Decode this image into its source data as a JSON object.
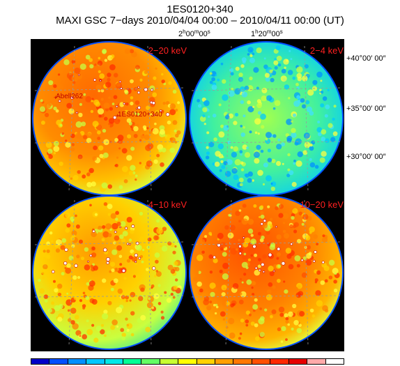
{
  "title": {
    "source": "1ES0120+340",
    "subtitle": "MAXI GSC 7−days 2010/04/04 00:00 – 2010/04/11 00:00 (UT)"
  },
  "ra_labels": [
    {
      "h": "2",
      "m": "00",
      "s": "00"
    },
    {
      "h": "1",
      "m": "20",
      "s": "00"
    }
  ],
  "dec_labels": [
    "+40°00′ 00″",
    "+35°00′ 00″",
    "+30°00′ 00″"
  ],
  "panels": [
    {
      "label": "2−20 keV",
      "tone": "warm",
      "sources": [
        "Abell262",
        "1ES0120+340"
      ]
    },
    {
      "label": "2−4 keV",
      "tone": "cool",
      "sources": []
    },
    {
      "label": "4−10 keV",
      "tone": "mid",
      "sources": []
    },
    {
      "label": "10−20 keV",
      "tone": "warm2",
      "sources": []
    }
  ],
  "colorbar": [
    "#0000c8",
    "#0050ff",
    "#0090ff",
    "#00c8ff",
    "#00e8e8",
    "#00ff96",
    "#64ff64",
    "#c8ff32",
    "#ffff00",
    "#ffd200",
    "#ffa000",
    "#ff7800",
    "#ff5000",
    "#ff2800",
    "#e60000",
    "#ffaaaa",
    "#ffffff"
  ],
  "colors": {
    "label_red": "#ff2020",
    "grid": "#9a9a9a"
  }
}
